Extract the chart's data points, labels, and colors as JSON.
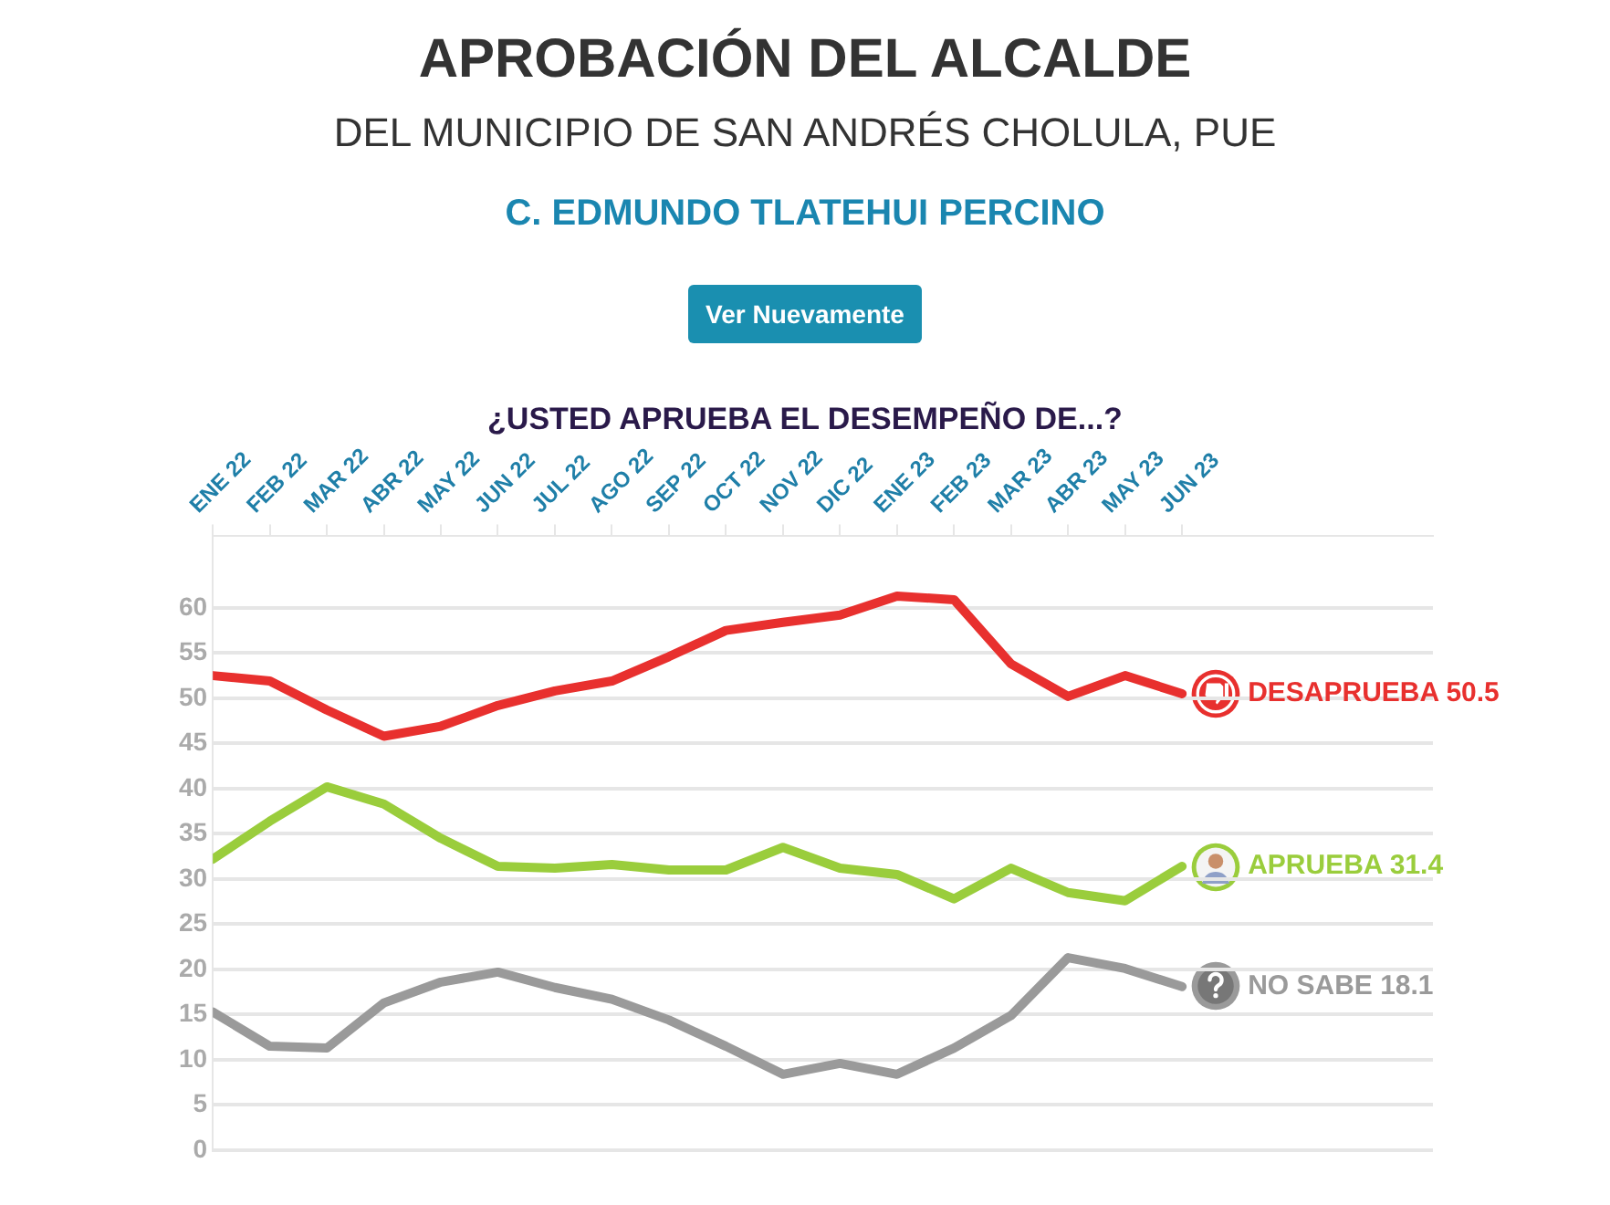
{
  "chart_data": {
    "type": "line",
    "title": "APROBACIÓN DEL ALCALDE",
    "subtitle": "DEL MUNICIPIO DE SAN ANDRÉS CHOLULA, PUE",
    "annotations": [
      "C. EDMUNDO TLATEHUI PERCINO",
      "Ver Nuevamente",
      "¿USTED APRUEBA EL DESEMPEÑO DE...?"
    ],
    "categories": [
      "ENE 22",
      "FEB 22",
      "MAR 22",
      "ABR 22",
      "MAY 22",
      "JUN 22",
      "JUL 22",
      "AGO 22",
      "SEP 22",
      "OCT 22",
      "NOV 22",
      "DIC 22",
      "ENE 23",
      "FEB 23",
      "MAR 23",
      "ABR 23",
      "MAY 23",
      "JUN 23"
    ],
    "series": [
      {
        "name": "DESAPRUEBA",
        "color": "#e8302e",
        "values": [
          52.5,
          51.9,
          48.7,
          45.8,
          46.9,
          49.2,
          50.8,
          51.9,
          54.6,
          57.5,
          58.4,
          59.2,
          61.3,
          60.9,
          53.8,
          50.2,
          52.5,
          50.5
        ],
        "value_labels": [
          null,
          null,
          null,
          null,
          null,
          null,
          null,
          null,
          null,
          null,
          null,
          null,
          null,
          null,
          null,
          null,
          null,
          "50.5"
        ]
      },
      {
        "name": "APRUEBA",
        "color": "#9acd3c",
        "values": [
          32.2,
          36.4,
          40.2,
          38.3,
          34.5,
          31.4,
          31.2,
          31.6,
          31.0,
          31.0,
          33.5,
          31.2,
          30.5,
          27.8,
          31.2,
          28.5,
          27.6,
          31.4
        ],
        "value_labels": [
          null,
          null,
          null,
          null,
          null,
          null,
          null,
          null,
          null,
          null,
          null,
          null,
          null,
          null,
          null,
          null,
          null,
          "31.4"
        ]
      },
      {
        "name": "NO SABE",
        "color": "#9a9a9a",
        "values": [
          15.3,
          11.5,
          11.3,
          16.3,
          18.6,
          19.7,
          18.0,
          16.7,
          14.4,
          11.5,
          8.4,
          9.6,
          8.4,
          11.3,
          14.9,
          21.3,
          20.1,
          18.1
        ],
        "value_labels": [
          null,
          null,
          null,
          null,
          null,
          null,
          null,
          null,
          null,
          null,
          null,
          null,
          null,
          null,
          null,
          null,
          null,
          "18.1"
        ]
      }
    ],
    "ylim": [
      0,
      68
    ],
    "yticks": [
      0,
      5,
      10,
      15,
      20,
      25,
      30,
      35,
      40,
      45,
      50,
      55,
      60
    ],
    "grid": "y",
    "legend": false,
    "marker": "none",
    "line_style": "solid"
  }
}
